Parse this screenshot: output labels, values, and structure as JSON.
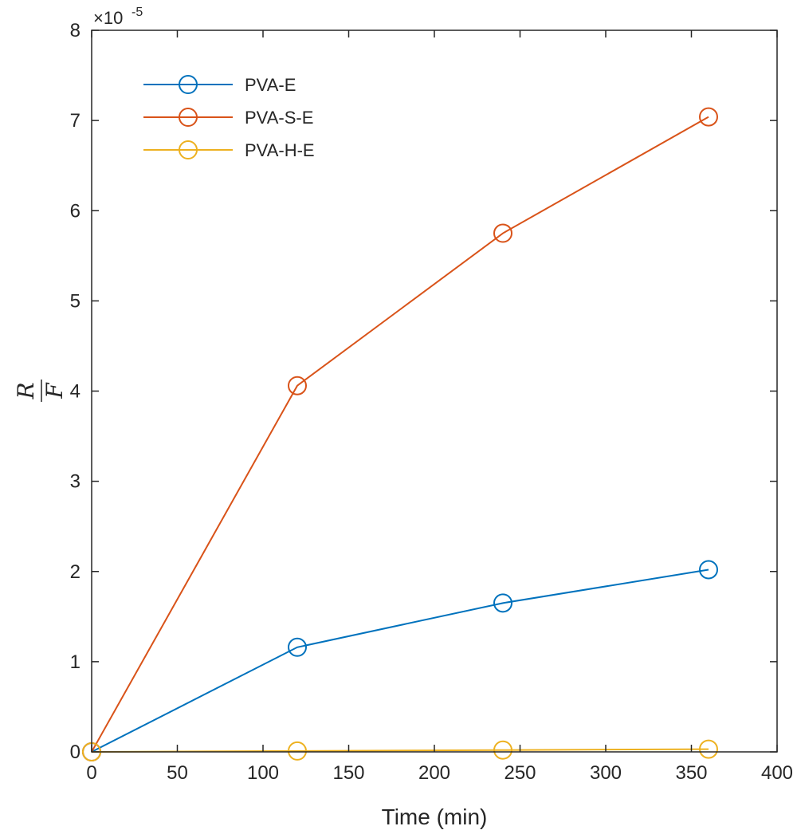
{
  "chart_data": {
    "type": "line",
    "xlabel": "Time (min)",
    "ylabel_numerator": "R",
    "ylabel_denominator": "F",
    "y_multiplier": "×10",
    "y_exponent": "-5",
    "xlim": [
      0,
      400
    ],
    "ylim": [
      0,
      8
    ],
    "x_ticks": [
      0,
      50,
      100,
      150,
      200,
      250,
      300,
      350,
      400
    ],
    "y_ticks": [
      0,
      1,
      2,
      3,
      4,
      5,
      6,
      7,
      8
    ],
    "y_scale_factor": 1e-05,
    "grid": false,
    "legend_position": "top-left",
    "x": [
      0,
      120,
      240,
      360
    ],
    "series": [
      {
        "name": "PVA-E",
        "color": "#0072BD",
        "marker": "circle",
        "values": [
          0,
          1.16,
          1.65,
          2.02
        ]
      },
      {
        "name": "PVA-S-E",
        "color": "#D95319",
        "marker": "circle",
        "values": [
          0,
          4.06,
          5.75,
          7.04
        ]
      },
      {
        "name": "PVA-H-E",
        "color": "#EDB120",
        "marker": "circle",
        "values": [
          0,
          0.01,
          0.02,
          0.03
        ]
      }
    ]
  }
}
